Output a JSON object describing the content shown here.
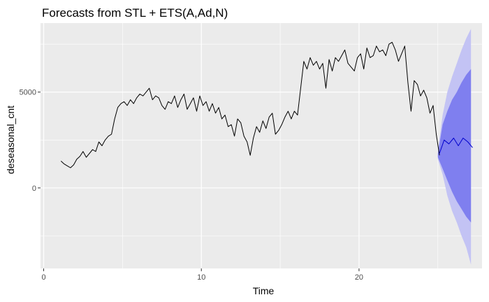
{
  "chart_data": {
    "type": "line",
    "title": "Forecasts from STL +  ETS(A,Ad,N)",
    "xlabel": "Time",
    "ylabel": "deseasonal_cnt",
    "xlim": [
      -0.2,
      27.8
    ],
    "ylim": [
      -4200,
      8600
    ],
    "xticks": [
      0,
      10,
      20
    ],
    "xtick_labels": [
      "0",
      "10",
      "20"
    ],
    "yticks": [
      0,
      5000
    ],
    "ytick_labels": [
      "0",
      "5000"
    ],
    "grid": true,
    "legend": "none",
    "colors": {
      "panel": "#ebebeb",
      "grid": "#ffffff",
      "history_line": "#000000",
      "forecast_line": "#0000cc",
      "band_80": "#7f7fef",
      "band_95": "#c3c3f4"
    },
    "series": [
      {
        "role": "history",
        "x": [
          1.1,
          1.3,
          1.5,
          1.7,
          1.9,
          2.1,
          2.3,
          2.5,
          2.7,
          2.9,
          3.1,
          3.3,
          3.5,
          3.7,
          3.9,
          4.1,
          4.3,
          4.5,
          4.7,
          4.9,
          5.1,
          5.3,
          5.5,
          5.7,
          5.9,
          6.1,
          6.3,
          6.5,
          6.7,
          6.9,
          7.1,
          7.3,
          7.5,
          7.7,
          7.9,
          8.1,
          8.3,
          8.5,
          8.7,
          8.9,
          9.1,
          9.3,
          9.5,
          9.7,
          9.9,
          10.1,
          10.3,
          10.5,
          10.7,
          10.9,
          11.1,
          11.3,
          11.5,
          11.7,
          11.9,
          12.1,
          12.3,
          12.5,
          12.7,
          12.9,
          13.1,
          13.3,
          13.5,
          13.7,
          13.9,
          14.1,
          14.3,
          14.5,
          14.7,
          14.9,
          15.1,
          15.3,
          15.5,
          15.7,
          15.9,
          16.1,
          16.3,
          16.5,
          16.7,
          16.9,
          17.1,
          17.3,
          17.5,
          17.7,
          17.9,
          18.1,
          18.3,
          18.5,
          18.7,
          18.9,
          19.1,
          19.3,
          19.5,
          19.7,
          19.9,
          20.1,
          20.3,
          20.5,
          20.7,
          20.9,
          21.1,
          21.3,
          21.5,
          21.7,
          21.9,
          22.1,
          22.3,
          22.5,
          22.7,
          22.9,
          23.1,
          23.3,
          23.5,
          23.7,
          23.9,
          24.1,
          24.3,
          24.5,
          24.7,
          24.9,
          25.1
        ],
        "values": [
          1400,
          1250,
          1150,
          1050,
          1200,
          1500,
          1650,
          1900,
          1600,
          1800,
          2000,
          1900,
          2400,
          2200,
          2500,
          2700,
          2800,
          3600,
          4200,
          4400,
          4500,
          4300,
          4600,
          4400,
          4700,
          4900,
          4800,
          5000,
          5200,
          4600,
          4800,
          4700,
          4300,
          4100,
          4500,
          4400,
          4800,
          4200,
          4600,
          4900,
          4100,
          4400,
          4700,
          4000,
          4800,
          4300,
          4500,
          4000,
          4400,
          3900,
          4200,
          3600,
          3800,
          3200,
          3300,
          2700,
          3600,
          3400,
          2700,
          2400,
          1700,
          2600,
          3200,
          2900,
          3500,
          3100,
          3700,
          3900,
          2800,
          3000,
          3300,
          3700,
          4000,
          3600,
          4000,
          3800,
          5200,
          6600,
          6200,
          6800,
          6400,
          6600,
          6200,
          6500,
          5200,
          6700,
          6100,
          6800,
          6600,
          6900,
          7200,
          6500,
          6300,
          6100,
          6800,
          7000,
          6200,
          7300,
          6800,
          6900,
          7400,
          7100,
          7200,
          6900,
          7500,
          7600,
          7200,
          6600,
          7000,
          7400,
          5500,
          4000,
          5600,
          5400,
          4800,
          5100,
          4700,
          3900,
          4300,
          2800,
          1700
        ]
      },
      {
        "role": "forecast",
        "x": [
          25.1,
          25.4,
          25.7,
          26.0,
          26.3,
          26.6,
          26.9,
          27.2
        ],
        "values": [
          1800,
          2500,
          2300,
          2600,
          2200,
          2600,
          2400,
          2100
        ]
      }
    ],
    "band_x": [
      25.0,
      25.3,
      25.6,
      25.9,
      26.2,
      26.5,
      26.8,
      27.1
    ],
    "band_80": {
      "lower": [
        1600,
        1000,
        400,
        -200,
        -700,
        -1100,
        -1500,
        -1800
      ],
      "upper": [
        1800,
        3300,
        4000,
        4600,
        5000,
        5500,
        5900,
        6200
      ]
    },
    "band_95": {
      "lower": [
        1500,
        700,
        -400,
        -1200,
        -1800,
        -2500,
        -3100,
        -4000
      ],
      "upper": [
        1900,
        3800,
        5000,
        5800,
        6500,
        7200,
        7800,
        8300
      ]
    }
  }
}
